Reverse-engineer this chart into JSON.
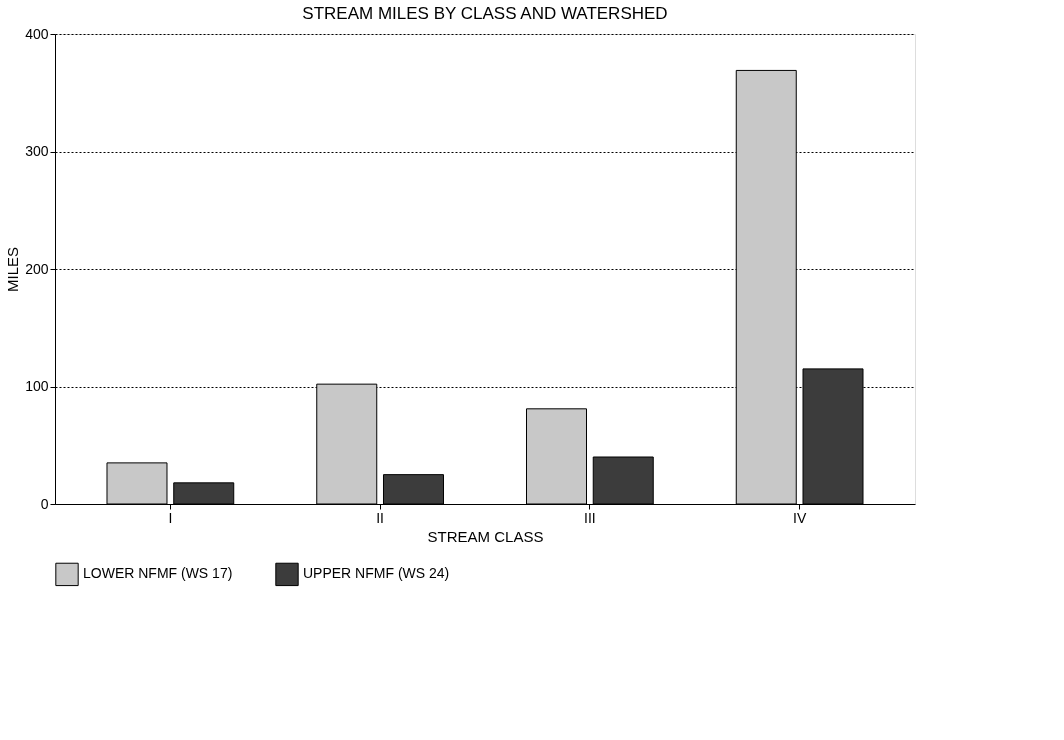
{
  "chart_data": {
    "type": "bar",
    "title": "STREAM MILES BY CLASS AND WATERSHED",
    "xlabel": "STREAM CLASS",
    "ylabel": "MILES",
    "categories": [
      "I",
      "II",
      "III",
      "IV"
    ],
    "series": [
      {
        "name": "LOWER NFMF (WS 17)",
        "color": "#c8c8c8",
        "values": [
          35,
          102,
          81,
          369
        ]
      },
      {
        "name": "UPPER NFMF (WS 24)",
        "color": "#3c3c3c",
        "values": [
          18,
          25,
          40,
          115
        ]
      }
    ],
    "ylim": [
      0,
      400
    ],
    "yticks": [
      0,
      100,
      200,
      300,
      400
    ],
    "grid": "y",
    "legend": "bottom"
  }
}
